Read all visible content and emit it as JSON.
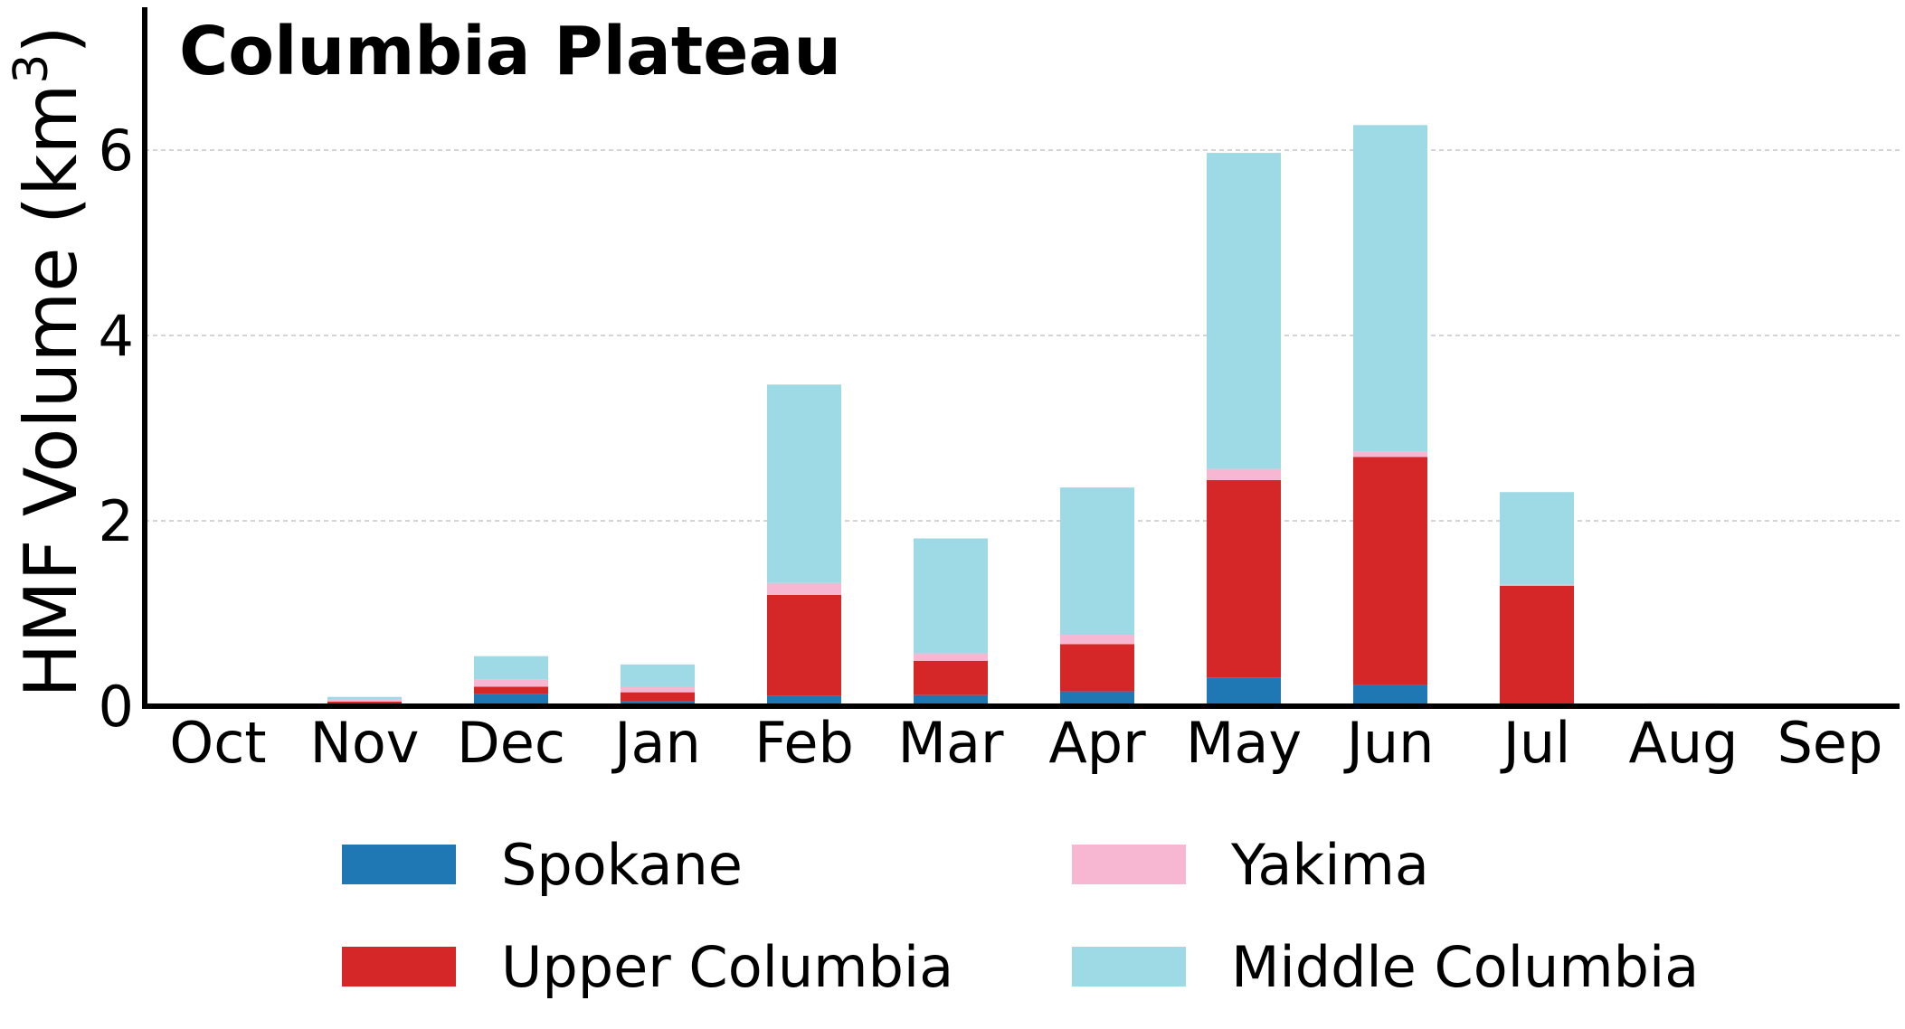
{
  "chart_data": {
    "type": "bar",
    "stacked": true,
    "title": "Columbia Plateau",
    "ylabel": "HMF Volume (km",
    "ylabel_sup": "3",
    "ylabel_close": ")",
    "xlabel": "",
    "categories": [
      "Oct",
      "Nov",
      "Dec",
      "Jan",
      "Feb",
      "Mar",
      "Apr",
      "May",
      "Jun",
      "Jul",
      "Aug",
      "Sep"
    ],
    "ylim": [
      0,
      7.5
    ],
    "yticks": [
      0,
      2,
      4,
      6
    ],
    "grid": "horizontal dashed",
    "legend_placement": "bottom",
    "series": [
      {
        "name": "Spokane",
        "color": "#1f77b4",
        "values": [
          0,
          0.01,
          0.13,
          0.05,
          0.11,
          0.12,
          0.16,
          0.31,
          0.23,
          0,
          0,
          0
        ]
      },
      {
        "name": "Upper Columbia",
        "color": "#d62728",
        "values": [
          0,
          0.04,
          0.08,
          0.1,
          1.09,
          0.37,
          0.51,
          2.13,
          2.46,
          1.3,
          0.03,
          0
        ]
      },
      {
        "name": "Yakima",
        "color": "#f7b6d2",
        "values": [
          0,
          0.02,
          0.08,
          0.06,
          0.13,
          0.08,
          0.1,
          0.12,
          0.06,
          0.01,
          0,
          0
        ]
      },
      {
        "name": "Middle Columbia",
        "color": "#9edae5",
        "values": [
          0,
          0.03,
          0.25,
          0.24,
          2.14,
          1.24,
          1.59,
          3.41,
          3.52,
          1.0,
          0,
          0
        ]
      }
    ]
  }
}
